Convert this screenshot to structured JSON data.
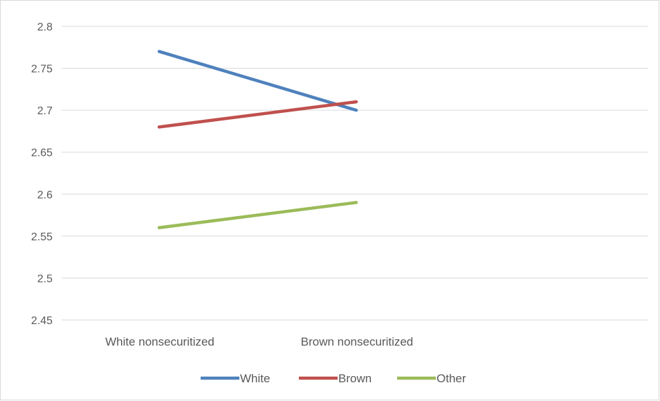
{
  "chart_data": {
    "type": "line",
    "categories": [
      "White nonsecuritized",
      "Brown nonsecuritized"
    ],
    "ylim": [
      2.45,
      2.8
    ],
    "yticks": [
      2.45,
      2.5,
      2.55,
      2.6,
      2.65,
      2.7,
      2.75,
      2.8
    ],
    "ytick_labels": [
      "2.45",
      "2.5",
      "2.55",
      "2.6",
      "2.65",
      "2.7",
      "2.75",
      "2.8"
    ],
    "grid": true,
    "legend_position": "bottom",
    "series": [
      {
        "name": "White",
        "values": [
          2.77,
          2.7
        ],
        "color": "#4f81bd"
      },
      {
        "name": "Brown",
        "values": [
          2.68,
          2.71
        ],
        "color": "#c0504d"
      },
      {
        "name": "Other",
        "values": [
          2.56,
          2.59
        ],
        "color": "#9bbb59"
      }
    ]
  }
}
